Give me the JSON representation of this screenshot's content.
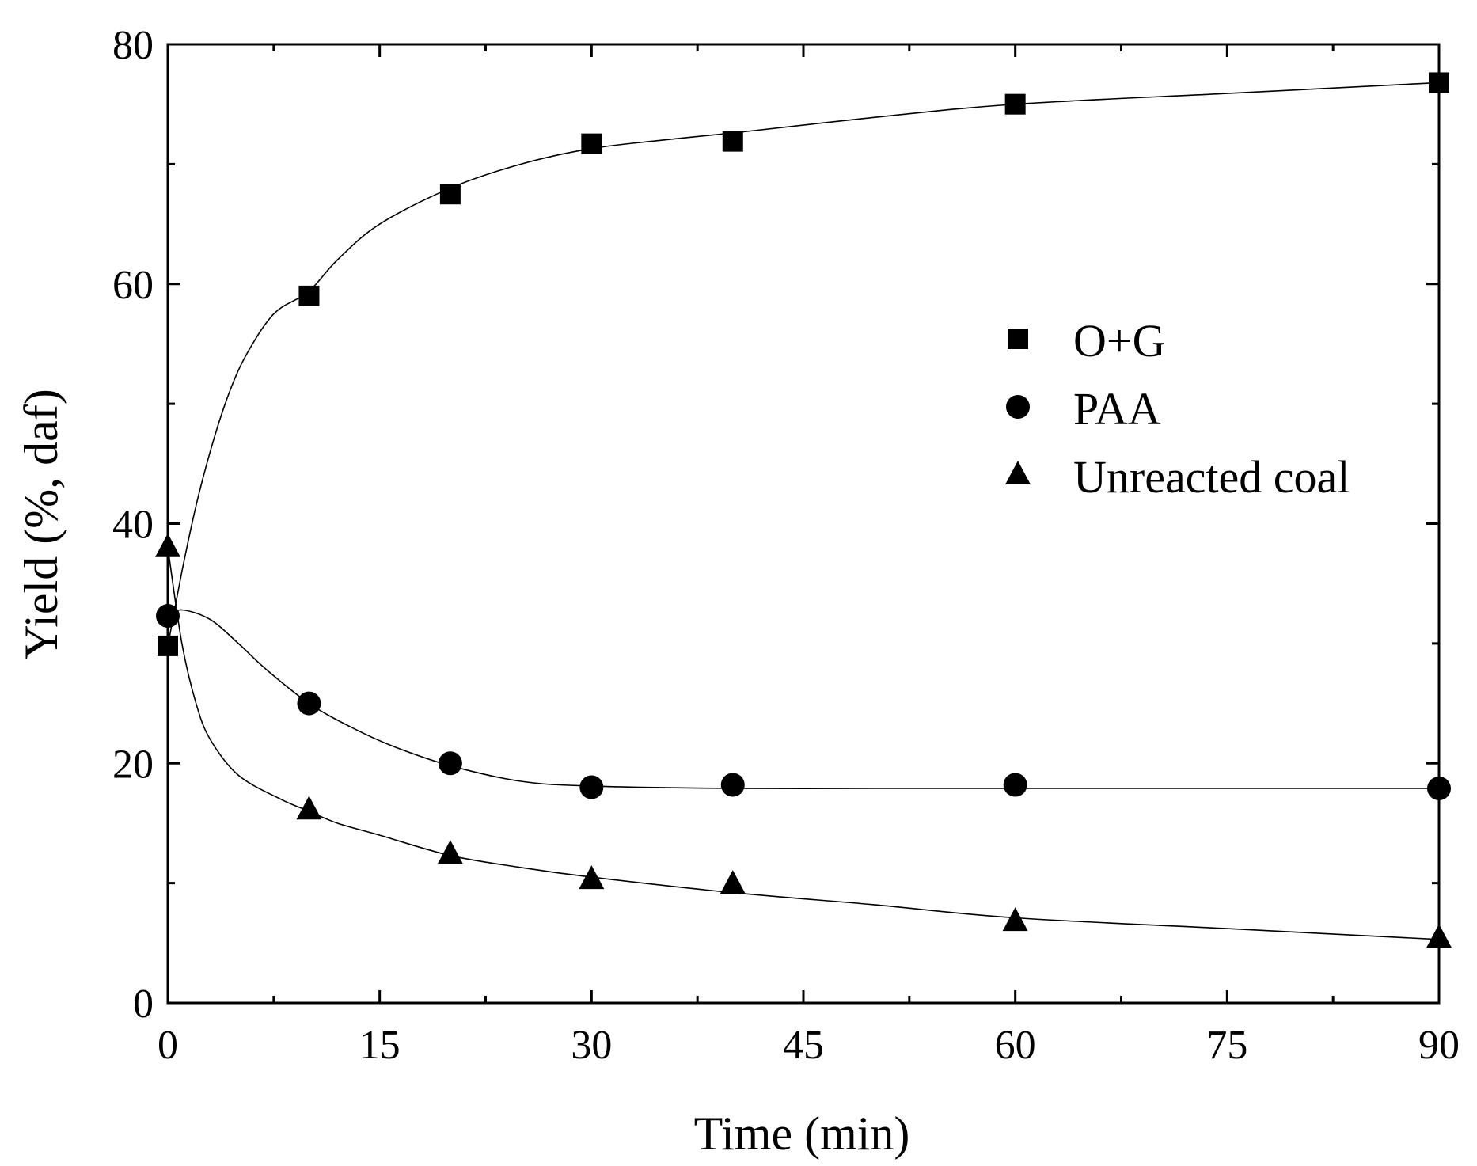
{
  "chart_data": {
    "type": "scatter",
    "title": "",
    "xlabel": "Time (min)",
    "ylabel": "Yield (%, daf)",
    "xlim": [
      0,
      90
    ],
    "ylim": [
      0,
      80
    ],
    "xticks": [
      0,
      15,
      30,
      45,
      60,
      75,
      90
    ],
    "xtick_labels": [
      "0",
      "15",
      "30",
      "45",
      "60",
      "75",
      "90"
    ],
    "yticks": [
      0,
      20,
      40,
      60,
      80
    ],
    "ytick_labels": [
      "0",
      "20",
      "40",
      "60",
      "80"
    ],
    "x_minor_step": 7.5,
    "y_minor_step": 10,
    "grid": false,
    "legend_position": "right",
    "series": [
      {
        "name": "O+G",
        "marker": "square",
        "x": [
          0,
          10,
          20,
          30,
          40,
          60,
          90
        ],
        "values": [
          29.8,
          59,
          67.5,
          71.7,
          71.9,
          75,
          76.8
        ],
        "fit": [
          [
            0,
            29.8
          ],
          [
            1,
            36
          ],
          [
            2,
            41.5
          ],
          [
            3,
            46
          ],
          [
            4,
            49.8
          ],
          [
            5,
            52.8
          ],
          [
            6,
            55
          ],
          [
            7,
            56.8
          ],
          [
            8,
            58
          ],
          [
            10,
            59.4
          ],
          [
            12,
            62
          ],
          [
            15,
            65
          ],
          [
            20,
            68
          ],
          [
            25,
            70
          ],
          [
            30,
            71.3
          ],
          [
            35,
            72
          ],
          [
            40,
            72.6
          ],
          [
            50,
            73.9
          ],
          [
            60,
            75
          ],
          [
            75,
            75.9
          ],
          [
            90,
            76.8
          ]
        ]
      },
      {
        "name": "PAA",
        "marker": "circle",
        "x": [
          0,
          10,
          20,
          30,
          40,
          60,
          90
        ],
        "values": [
          32.3,
          25,
          20,
          18,
          18.2,
          18.2,
          17.9
        ],
        "fit": [
          [
            0,
            32.3
          ],
          [
            1,
            32.8
          ],
          [
            3,
            32
          ],
          [
            5,
            30
          ],
          [
            7,
            27.8
          ],
          [
            10,
            25
          ],
          [
            13,
            23
          ],
          [
            16,
            21.4
          ],
          [
            20,
            19.8
          ],
          [
            25,
            18.5
          ],
          [
            30,
            18.1
          ],
          [
            40,
            17.9
          ],
          [
            50,
            17.9
          ],
          [
            60,
            17.9
          ],
          [
            75,
            17.9
          ],
          [
            90,
            17.9
          ]
        ]
      },
      {
        "name": "Unreacted coal",
        "marker": "triangle",
        "x": [
          0,
          10,
          20,
          30,
          40,
          60,
          90
        ],
        "values": [
          38,
          16.1,
          12.4,
          10.3,
          9.9,
          6.8,
          5.4
        ],
        "fit": [
          [
            0,
            38
          ],
          [
            1,
            30
          ],
          [
            2,
            25
          ],
          [
            3,
            22
          ],
          [
            5,
            19
          ],
          [
            8,
            17
          ],
          [
            10,
            16
          ],
          [
            12,
            15
          ],
          [
            15,
            14
          ],
          [
            20,
            12.3
          ],
          [
            25,
            11.3
          ],
          [
            30,
            10.5
          ],
          [
            40,
            9.2
          ],
          [
            50,
            8.2
          ],
          [
            60,
            7.1
          ],
          [
            75,
            6.2
          ],
          [
            90,
            5.3
          ]
        ]
      }
    ]
  }
}
